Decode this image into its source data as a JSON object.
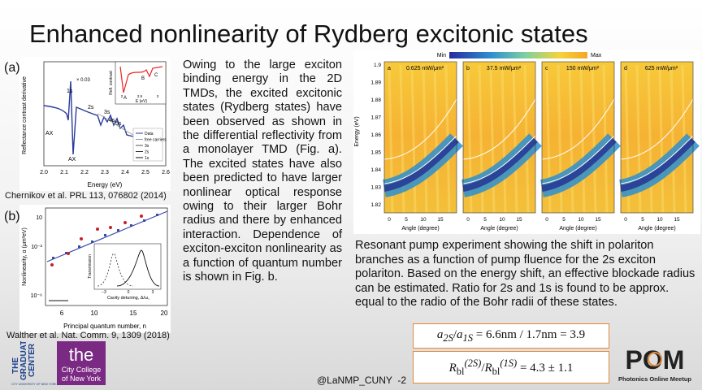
{
  "title": "Enhanced nonlinearity of Rydberg excitonic states",
  "panel_a": {
    "label": "(a)",
    "citation": "Chernikov et al. PRL 113, 076802 (2014)",
    "y_axis_label": "Reflectance contrast derivative",
    "x_axis_label": "Energy (eV)",
    "x_ticks": [
      "2.0",
      "2.1",
      "2.2",
      "2.3",
      "2.4",
      "2.5",
      "2.6"
    ],
    "peak_labels": [
      "1s",
      "2s",
      "3s",
      "4s",
      "5s",
      "AX",
      "AX",
      "× 0.03"
    ],
    "inset": {
      "y_axis_label": "Refl. contrast",
      "x_axis_label": "E (eV)",
      "peaks": [
        "A",
        "B",
        "C"
      ],
      "x_ticks": [
        "2",
        "2.5",
        "3"
      ]
    },
    "legend": [
      "Data",
      "free carriers",
      "3s",
      "2s",
      "1s"
    ]
  },
  "panel_b": {
    "label": "(b)",
    "citation": "Walther et al. Nat. Comm. 9, 1309 (2018)",
    "y_axis_label": "Nonlinearity, α (μm²eV)",
    "x_axis_label": "Principal quantum number, n",
    "y_ticks": [
      "10",
      "10⁻²",
      "10⁻⁶"
    ],
    "x_ticks": [
      "6",
      "10",
      "15",
      "20"
    ],
    "inset": {
      "y_axis_label": "Transmission",
      "x_axis_label": "Cavity detuning, Δ/ω꜀",
      "x_ticks": [
        "−3",
        "0",
        "3"
      ]
    }
  },
  "body_text": "Owing to the large exciton binding energy in the 2D TMDs, the excited excitonic states (Rydberg states) have been observed as shown in the differential reflectivity from a monolayer TMD (Fig. a). The excited states have also been predicted to have larger nonlinear optical response owing to their larger Bohr radius and there by enhanced interaction. Dependence of exciton-exciton nonlinearity as a function of quantum number is shown in Fig. b.",
  "panel_c": {
    "colorbar": [
      "Min",
      "Max"
    ],
    "y_axis_label": "Energy (eV)",
    "y_ticks": [
      "1.9",
      "1.89",
      "1.88",
      "1.87",
      "1.86",
      "1.85",
      "1.84",
      "1.83",
      "1.82"
    ],
    "x_axis_label": "Angle (degree)",
    "x_ticks": [
      "0",
      "5",
      "10",
      "15"
    ],
    "subpanels": [
      {
        "letter": "a",
        "fluence": "0.625 mW/μm²"
      },
      {
        "letter": "b",
        "fluence": "37.5 mW/μm²"
      },
      {
        "letter": "c",
        "fluence": "150 mW/μm²"
      },
      {
        "letter": "d",
        "fluence": "625 mW/μm²"
      }
    ]
  },
  "figure_caption": "Resonant pump experiment showing the shift in polariton branches as a function of pump fluence for the 2s exciton polariton. Based on the energy shift, an effective blockade radius can be estimated. Ratio for 2s and 1s is found to be approx. equal to the radio of the Bohr radii of these states.",
  "equations": [
    {
      "symbol": "a",
      "sub_1": "2S",
      "sub_2": "1S",
      "rhs": "= 6.6nm / 1.7nm = 3.9"
    },
    {
      "symbol": "R",
      "sub": "bl",
      "sup_1": "(2S)",
      "sup_2": "(1S)",
      "rhs": "= 4.3 ± 1.1"
    }
  ],
  "logos": {
    "graduate_center": [
      "THE",
      "GRADUATE",
      "CENTER"
    ],
    "cuny": "CITY UNIVERSITY OF NEW YORK",
    "ccny": [
      "the",
      "City College",
      "of New York"
    ],
    "pom": "POM",
    "pom_subtitle": "Photonics Online Meetup"
  },
  "footer": "@LaNMP_CUNY  -2"
}
